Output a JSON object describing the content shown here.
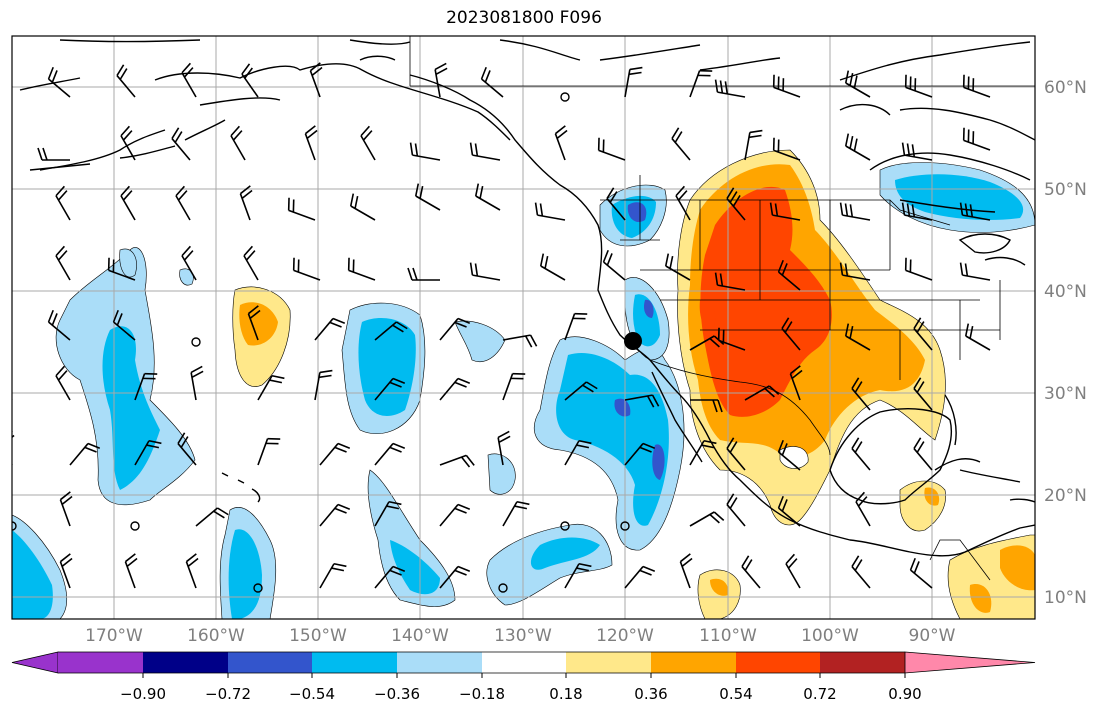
{
  "title": "2023081800 F096",
  "longitude_labels": [
    "170°W",
    "160°W",
    "150°W",
    "140°W",
    "130°W",
    "120°W",
    "110°W",
    "100°W",
    "90°W"
  ],
  "latitude_labels": [
    "60°N",
    "50°N",
    "40°N",
    "30°N",
    "20°N",
    "10°N"
  ],
  "colorbar": {
    "ticks": [
      "−0.90",
      "−0.72",
      "−0.54",
      "−0.36",
      "−0.18",
      "0.18",
      "0.36",
      "0.54",
      "0.72",
      "0.90"
    ],
    "colors": [
      "#9933cc",
      "#000088",
      "#3355cc",
      "#00bbf0",
      "#aaddf8",
      "#ffffff",
      "#ffe88a",
      "#ffa500",
      "#ff4500",
      "#b22222",
      "#ff88aa"
    ]
  },
  "colors": {
    "grid": "#a9a9a9",
    "coast": "#000000",
    "label": "#7f7f7f"
  }
}
